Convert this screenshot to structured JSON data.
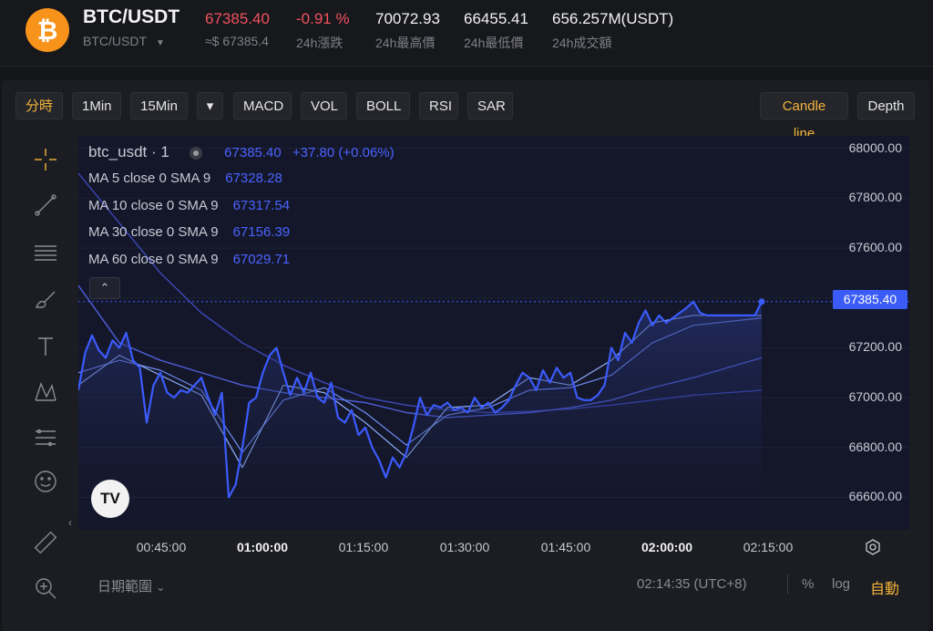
{
  "ticker": {
    "pair": "BTC/USDT",
    "pair_sub": "BTC/USDT",
    "icon": "bitcoin-icon",
    "stats": [
      {
        "value": "67385.40",
        "sub": "≈$ 67385.4",
        "color": "#f0515e"
      },
      {
        "value": "-0.91 %",
        "sub": "24h漲跌",
        "color": "#f0515e"
      },
      {
        "value": "70072.93",
        "sub": "24h最高價"
      },
      {
        "value": "66455.41",
        "sub": "24h最低價"
      },
      {
        "value": "656.257M(USDT)",
        "sub": "24h成交額"
      }
    ]
  },
  "toolbar": {
    "intervals": [
      "分時",
      "1Min",
      "15Min"
    ],
    "dropdown_icon": "caret-down-icon",
    "indicators": [
      "MACD",
      "VOL",
      "BOLL",
      "RSI",
      "SAR"
    ],
    "views": [
      "Candle line",
      "Depth"
    ],
    "active_view": "Candle line",
    "accent": "#f3b43a"
  },
  "tools": [
    "crosshair-icon",
    "trend-line-icon",
    "horizontal-lines-icon",
    "brush-icon",
    "text-icon",
    "pattern-icon",
    "fib-icon",
    "emoji-icon",
    "ruler-icon",
    "zoom-in-icon"
  ],
  "legend": {
    "symbol": "btc_usdt · 1",
    "price": "67385.40",
    "change": "+37.80 (+0.06%)",
    "ma": [
      {
        "label": "MA 5 close 0 SMA 9",
        "value": "67328.28"
      },
      {
        "label": "MA 10 close 0 SMA 9",
        "value": "67317.54"
      },
      {
        "label": "MA 30 close 0 SMA 9",
        "value": "67156.39"
      },
      {
        "label": "MA 60 close 0 SMA 9",
        "value": "67029.71"
      }
    ],
    "toggle_label": "⌃"
  },
  "price_tag": "67385.40",
  "tv_logo": "TV",
  "chart_data": {
    "type": "line",
    "y_ticks": [
      "68000.00",
      "67800.00",
      "67600.00",
      "67400.00",
      "67200.00",
      "67000.00",
      "66800.00",
      "66600.00"
    ],
    "x_ticks": [
      {
        "label": "00:45:00",
        "bold": false
      },
      {
        "label": "01:00:00",
        "bold": true
      },
      {
        "label": "01:15:00",
        "bold": false
      },
      {
        "label": "01:30:00",
        "bold": false
      },
      {
        "label": "01:45:00",
        "bold": false
      },
      {
        "label": "02:00:00",
        "bold": true
      },
      {
        "label": "02:15:00",
        "bold": false
      }
    ],
    "ylim": [
      66470,
      68050
    ],
    "xlim": [
      0,
      100
    ],
    "current_price": 67385.4,
    "colors": {
      "price": "#3b5bfd",
      "ma5": "#8fb0ff",
      "ma10": "#6f8cf5",
      "ma30": "#4e5fd9",
      "ma60": "#3d47b8"
    },
    "series": [
      {
        "key": "price",
        "x": [
          0,
          1,
          2,
          3,
          4,
          5,
          6,
          7,
          8,
          9,
          10,
          11,
          12,
          13,
          14,
          15,
          16,
          17,
          18,
          19,
          20,
          21,
          22,
          23,
          24,
          25,
          26,
          27,
          28,
          29,
          30,
          31,
          32,
          33,
          34,
          35,
          36,
          37,
          38,
          39,
          40,
          41,
          42,
          43,
          44,
          45,
          46,
          47,
          48,
          49,
          50,
          51,
          52,
          53,
          54,
          55,
          56,
          57,
          58,
          59,
          60,
          61,
          62,
          63,
          64,
          65,
          66,
          67,
          68,
          69,
          70,
          71,
          72,
          73,
          74,
          75,
          76,
          77,
          78,
          79,
          80,
          81,
          82,
          83,
          84,
          85,
          86,
          87,
          88,
          89,
          90,
          91,
          92,
          93,
          94,
          95,
          96,
          97,
          98,
          99,
          100
        ],
        "y": [
          67030,
          67180,
          67250,
          67190,
          67160,
          67230,
          67200,
          67260,
          67150,
          67120,
          66900,
          67050,
          67100,
          67020,
          67000,
          67030,
          67020,
          67050,
          67080,
          67000,
          66930,
          67020,
          66600,
          66650,
          66800,
          66980,
          67000,
          67100,
          67170,
          67200,
          67100,
          67010,
          67080,
          67020,
          67100,
          67000,
          66980,
          67060,
          66920,
          66900,
          66950,
          66850,
          66880,
          66800,
          66750,
          66680,
          66760,
          66720,
          66780,
          66880,
          67000,
          66930,
          66970,
          66960,
          66980,
          66950,
          66960,
          66940,
          67000,
          66960,
          66980,
          66940,
          66960,
          66990,
          67050,
          67100,
          67080,
          67030,
          67110,
          67060,
          67120,
          67080,
          67100,
          67000,
          66990,
          66990,
          67010,
          67050,
          67200,
          67150,
          67260,
          67220,
          67300,
          67350,
          67290,
          67330,
          67300,
          67320,
          67340,
          67360,
          67385,
          67340,
          67330,
          67330,
          67330,
          67330,
          67330,
          67330,
          67330,
          67330,
          67385
        ]
      },
      {
        "key": "ma5",
        "x": [
          0,
          6,
          12,
          18,
          24,
          30,
          36,
          42,
          48,
          54,
          60,
          66,
          72,
          78,
          84,
          90,
          100
        ],
        "y": [
          67050,
          67170,
          67090,
          67010,
          66720,
          67050,
          67020,
          66900,
          66760,
          66960,
          66970,
          67080,
          67050,
          67150,
          67300,
          67330,
          67330
        ]
      },
      {
        "key": "ma10",
        "x": [
          0,
          6,
          12,
          18,
          24,
          30,
          36,
          42,
          48,
          54,
          60,
          66,
          72,
          78,
          84,
          90,
          100
        ],
        "y": [
          67100,
          67150,
          67110,
          67030,
          66780,
          66990,
          67040,
          66940,
          66810,
          66930,
          66960,
          67030,
          67040,
          67090,
          67220,
          67290,
          67320
        ]
      },
      {
        "key": "ma30",
        "x": [
          0,
          6,
          12,
          18,
          24,
          30,
          36,
          42,
          48,
          54,
          60,
          66,
          72,
          78,
          84,
          90,
          100
        ],
        "y": [
          67450,
          67220,
          67150,
          67100,
          67050,
          67020,
          67000,
          66980,
          66940,
          66920,
          66930,
          66940,
          66960,
          66990,
          67040,
          67080,
          67160
        ]
      },
      {
        "key": "ma60",
        "x": [
          0,
          6,
          12,
          18,
          24,
          30,
          36,
          42,
          48,
          54,
          60,
          66,
          72,
          78,
          84,
          90,
          100
        ],
        "y": [
          67900,
          67700,
          67500,
          67340,
          67220,
          67130,
          67060,
          67000,
          66970,
          66950,
          66940,
          66945,
          66955,
          66970,
          66990,
          67010,
          67030
        ]
      }
    ]
  },
  "bottom": {
    "date_range": "日期範圍",
    "time": "02:14:35 (UTC+8)",
    "percent": "%",
    "log": "log",
    "auto": "自動"
  }
}
